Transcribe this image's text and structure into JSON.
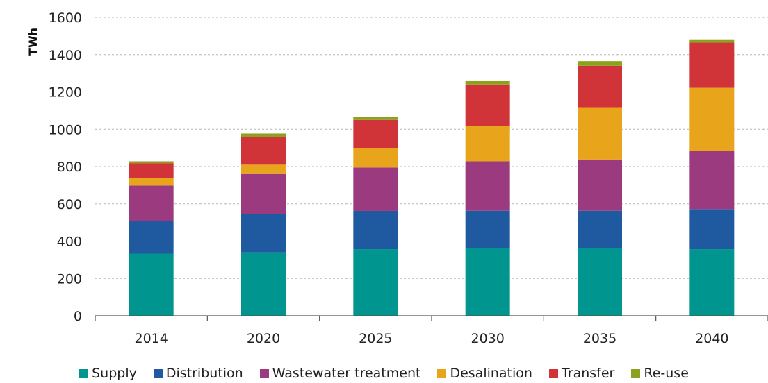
{
  "chart_data": {
    "type": "bar",
    "stacked": true,
    "ylabel": "TWh",
    "xlabel": "",
    "ylim": [
      0,
      1600
    ],
    "yticks": [
      0,
      200,
      400,
      600,
      800,
      1000,
      1200,
      1400,
      1600
    ],
    "grid": true,
    "legend_position": "bottom",
    "categories": [
      "2014",
      "2020",
      "2025",
      "2030",
      "2035",
      "2040"
    ],
    "series": [
      {
        "name": "Supply",
        "color": "#00968f",
        "values": [
          333,
          340,
          357,
          363,
          363,
          357
        ]
      },
      {
        "name": "Distribution",
        "color": "#1f5aa0",
        "values": [
          175,
          205,
          205,
          200,
          200,
          215
        ]
      },
      {
        "name": "Wastewater treatment",
        "color": "#9c3a80",
        "values": [
          190,
          215,
          233,
          265,
          275,
          313
        ]
      },
      {
        "name": "Desalination",
        "color": "#e8a41a",
        "values": [
          42,
          50,
          105,
          190,
          280,
          337
        ]
      },
      {
        "name": "Transfer",
        "color": "#d13438",
        "values": [
          78,
          150,
          150,
          222,
          222,
          242
        ]
      },
      {
        "name": "Re-use",
        "color": "#8ca21e",
        "values": [
          10,
          17,
          18,
          18,
          25,
          18
        ]
      }
    ]
  }
}
